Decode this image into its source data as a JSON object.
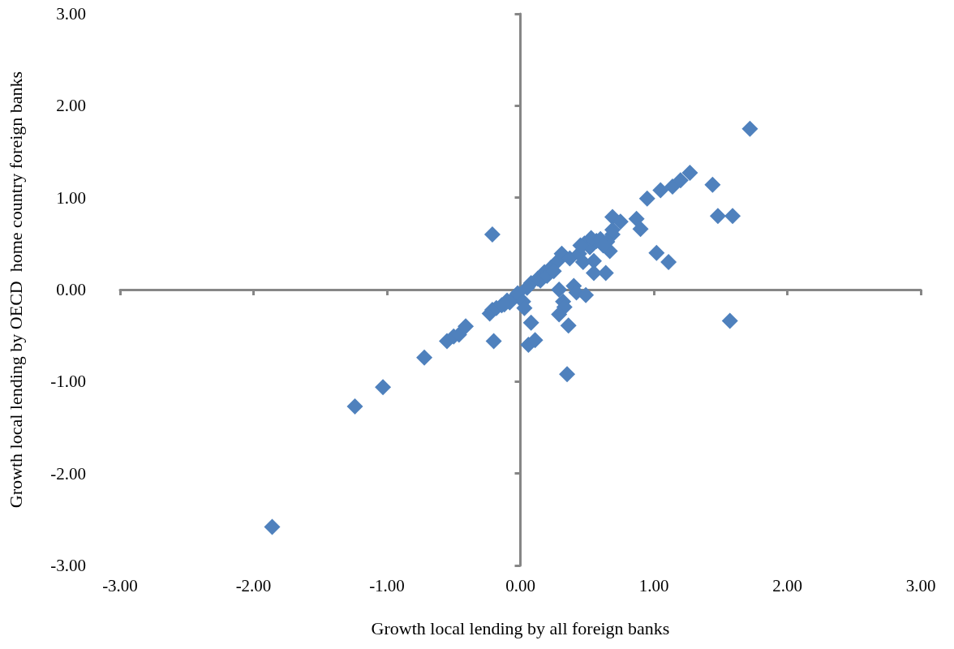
{
  "chart_data": {
    "type": "scatter",
    "xlabel": "Growth local lending by all foreign banks",
    "ylabel": "Growth local lending by OECD  home country foreign banks",
    "marker": "diamond",
    "xlim": [
      -3,
      3
    ],
    "ylim": [
      -3,
      3
    ],
    "xticks": [
      {
        "value": -3,
        "label": "-3.00"
      },
      {
        "value": -2,
        "label": "-2.00"
      },
      {
        "value": -1,
        "label": "-1.00"
      },
      {
        "value": 0,
        "label": "0.00"
      },
      {
        "value": 1,
        "label": "1.00"
      },
      {
        "value": 2,
        "label": "2.00"
      },
      {
        "value": 3,
        "label": "3.00"
      }
    ],
    "yticks": [
      {
        "value": -3,
        "label": "-3.00"
      },
      {
        "value": -2,
        "label": "-2.00"
      },
      {
        "value": -1,
        "label": "-1.00"
      },
      {
        "value": 0,
        "label": "0.00"
      },
      {
        "value": 1,
        "label": "1.00"
      },
      {
        "value": 2,
        "label": "2.00"
      },
      {
        "value": 3,
        "label": "3.00"
      }
    ],
    "series": [
      {
        "color": "#4f81bd",
        "x": [
          -1.86,
          -1.24,
          -1.03,
          -0.72,
          -0.55,
          -0.5,
          -0.46,
          -0.41,
          -0.21,
          -0.2,
          -0.23,
          -0.21,
          -0.18,
          -0.14,
          -0.1,
          -0.05,
          -0.02,
          0.02,
          0.03,
          0.08,
          0.06,
          0.11,
          0.08,
          0.13,
          0.18,
          0.23,
          0.28,
          0.31,
          0.29,
          0.32,
          0.33,
          0.29,
          0.36,
          0.35,
          0.37,
          0.4,
          0.42,
          0.49,
          0.47,
          0.44,
          0.48,
          0.52,
          0.57,
          0.53,
          0.45,
          0.55,
          0.55,
          0.64,
          0.67,
          0.69,
          0.75,
          0.69,
          0.65,
          0.69,
          0.87,
          0.9,
          0.95,
          1.05,
          1.14,
          1.2,
          1.27,
          1.44,
          1.48,
          1.59,
          1.72,
          1.02,
          1.11,
          1.57,
          0.05,
          0.15,
          0.2,
          0.25,
          -0.08,
          -0.12,
          0.6,
          0.62
        ],
        "values": [
          -2.58,
          -1.27,
          -1.06,
          -0.74,
          -0.56,
          -0.51,
          -0.49,
          -0.4,
          0.6,
          -0.56,
          -0.26,
          -0.22,
          -0.2,
          -0.17,
          -0.12,
          -0.09,
          -0.04,
          -0.13,
          -0.2,
          -0.36,
          -0.6,
          -0.55,
          0.07,
          0.12,
          0.19,
          0.24,
          0.31,
          0.39,
          0.0,
          -0.13,
          -0.19,
          -0.27,
          -0.39,
          -0.92,
          0.34,
          0.04,
          -0.03,
          -0.06,
          0.3,
          0.39,
          0.5,
          0.46,
          0.53,
          0.56,
          0.48,
          0.31,
          0.18,
          0.18,
          0.42,
          0.79,
          0.74,
          0.6,
          0.52,
          0.65,
          0.77,
          0.66,
          0.99,
          1.08,
          1.12,
          1.19,
          1.27,
          1.14,
          0.8,
          0.8,
          1.75,
          0.4,
          0.3,
          -0.34,
          0.02,
          0.1,
          0.15,
          0.2,
          -0.14,
          -0.16,
          0.55,
          0.48
        ]
      }
    ]
  }
}
